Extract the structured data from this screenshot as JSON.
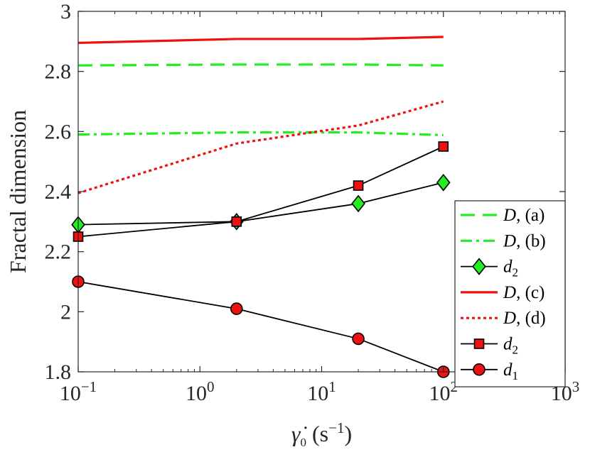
{
  "chart_data": {
    "type": "line",
    "xscale": "log",
    "xlim": [
      0.1,
      1000
    ],
    "ylim": [
      1.8,
      3.0
    ],
    "xlabel": "γ̇0 (s−1)",
    "xlabel_parts": {
      "symbol": "γ̇",
      "symbol_sub": "0",
      "unit_open": "(s",
      "unit_exp": "−1",
      "unit_close": ")"
    },
    "ylabel": "Fractal dimension",
    "x_ticks": [
      {
        "value": 0.1,
        "base": "10",
        "exp": "−1"
      },
      {
        "value": 1,
        "base": "10",
        "exp": "0"
      },
      {
        "value": 10,
        "base": "10",
        "exp": "1"
      },
      {
        "value": 100,
        "base": "10",
        "exp": "2"
      },
      {
        "value": 1000,
        "base": "10",
        "exp": "3"
      }
    ],
    "y_ticks": [
      {
        "value": 1.8,
        "label": "1.8"
      },
      {
        "value": 2.0,
        "label": "2"
      },
      {
        "value": 2.2,
        "label": "2.2"
      },
      {
        "value": 2.4,
        "label": "2.4"
      },
      {
        "value": 2.6,
        "label": "2.6"
      },
      {
        "value": 2.8,
        "label": "2.8"
      },
      {
        "value": 3.0,
        "label": "3"
      }
    ],
    "series": [
      {
        "key": "D_a",
        "name": "D, (a)",
        "label_var": "D",
        "label_rest": ", (a)",
        "label_sub": "",
        "color": "#22ee22",
        "dash": "20,11",
        "marker": "none",
        "x": [
          0.1,
          2,
          20,
          100
        ],
        "values": [
          2.82,
          2.823,
          2.823,
          2.82
        ]
      },
      {
        "key": "D_b",
        "name": "D, (b)",
        "label_var": "D",
        "label_rest": ", (b)",
        "label_sub": "",
        "color": "#22ee22",
        "dash": "16,6,4,6",
        "marker": "none",
        "x": [
          0.1,
          2,
          20,
          100
        ],
        "values": [
          2.59,
          2.597,
          2.597,
          2.588
        ]
      },
      {
        "key": "d2_green",
        "name": "d2",
        "label_var": "d",
        "label_rest": "",
        "label_sub": "2",
        "color": "#000000",
        "dash": "",
        "marker": "diamond",
        "marker_fill": "#22ee22",
        "x": [
          0.1,
          2,
          20,
          100
        ],
        "values": [
          2.29,
          2.3,
          2.36,
          2.43
        ]
      },
      {
        "key": "D_c",
        "name": "D, (c)",
        "label_var": "D",
        "label_rest": ", (c)",
        "label_sub": "",
        "color": "#ee1111",
        "dash": "",
        "marker": "none",
        "x": [
          0.1,
          2,
          20,
          100
        ],
        "values": [
          2.895,
          2.908,
          2.908,
          2.915
        ]
      },
      {
        "key": "D_d",
        "name": "D, (d)",
        "label_var": "D",
        "label_rest": ", (d)",
        "label_sub": "",
        "color": "#ee1111",
        "dash": "4,4",
        "marker": "none",
        "x": [
          0.1,
          2,
          20,
          100
        ],
        "values": [
          2.395,
          2.56,
          2.62,
          2.7
        ]
      },
      {
        "key": "d2_red",
        "name": "d2",
        "label_var": "d",
        "label_rest": "",
        "label_sub": "2",
        "color": "#000000",
        "dash": "",
        "marker": "square",
        "marker_fill": "#ee1111",
        "x": [
          0.1,
          2,
          20,
          100
        ],
        "values": [
          2.25,
          2.3,
          2.42,
          2.55
        ]
      },
      {
        "key": "d1",
        "name": "d1",
        "label_var": "d",
        "label_rest": "",
        "label_sub": "1",
        "color": "#000000",
        "dash": "",
        "marker": "circle",
        "marker_fill": "#ee1111",
        "x": [
          0.1,
          2,
          20,
          100
        ],
        "values": [
          2.1,
          2.01,
          1.91,
          1.8
        ]
      }
    ],
    "legend": {
      "position": "right",
      "box": true
    },
    "grid": false
  }
}
